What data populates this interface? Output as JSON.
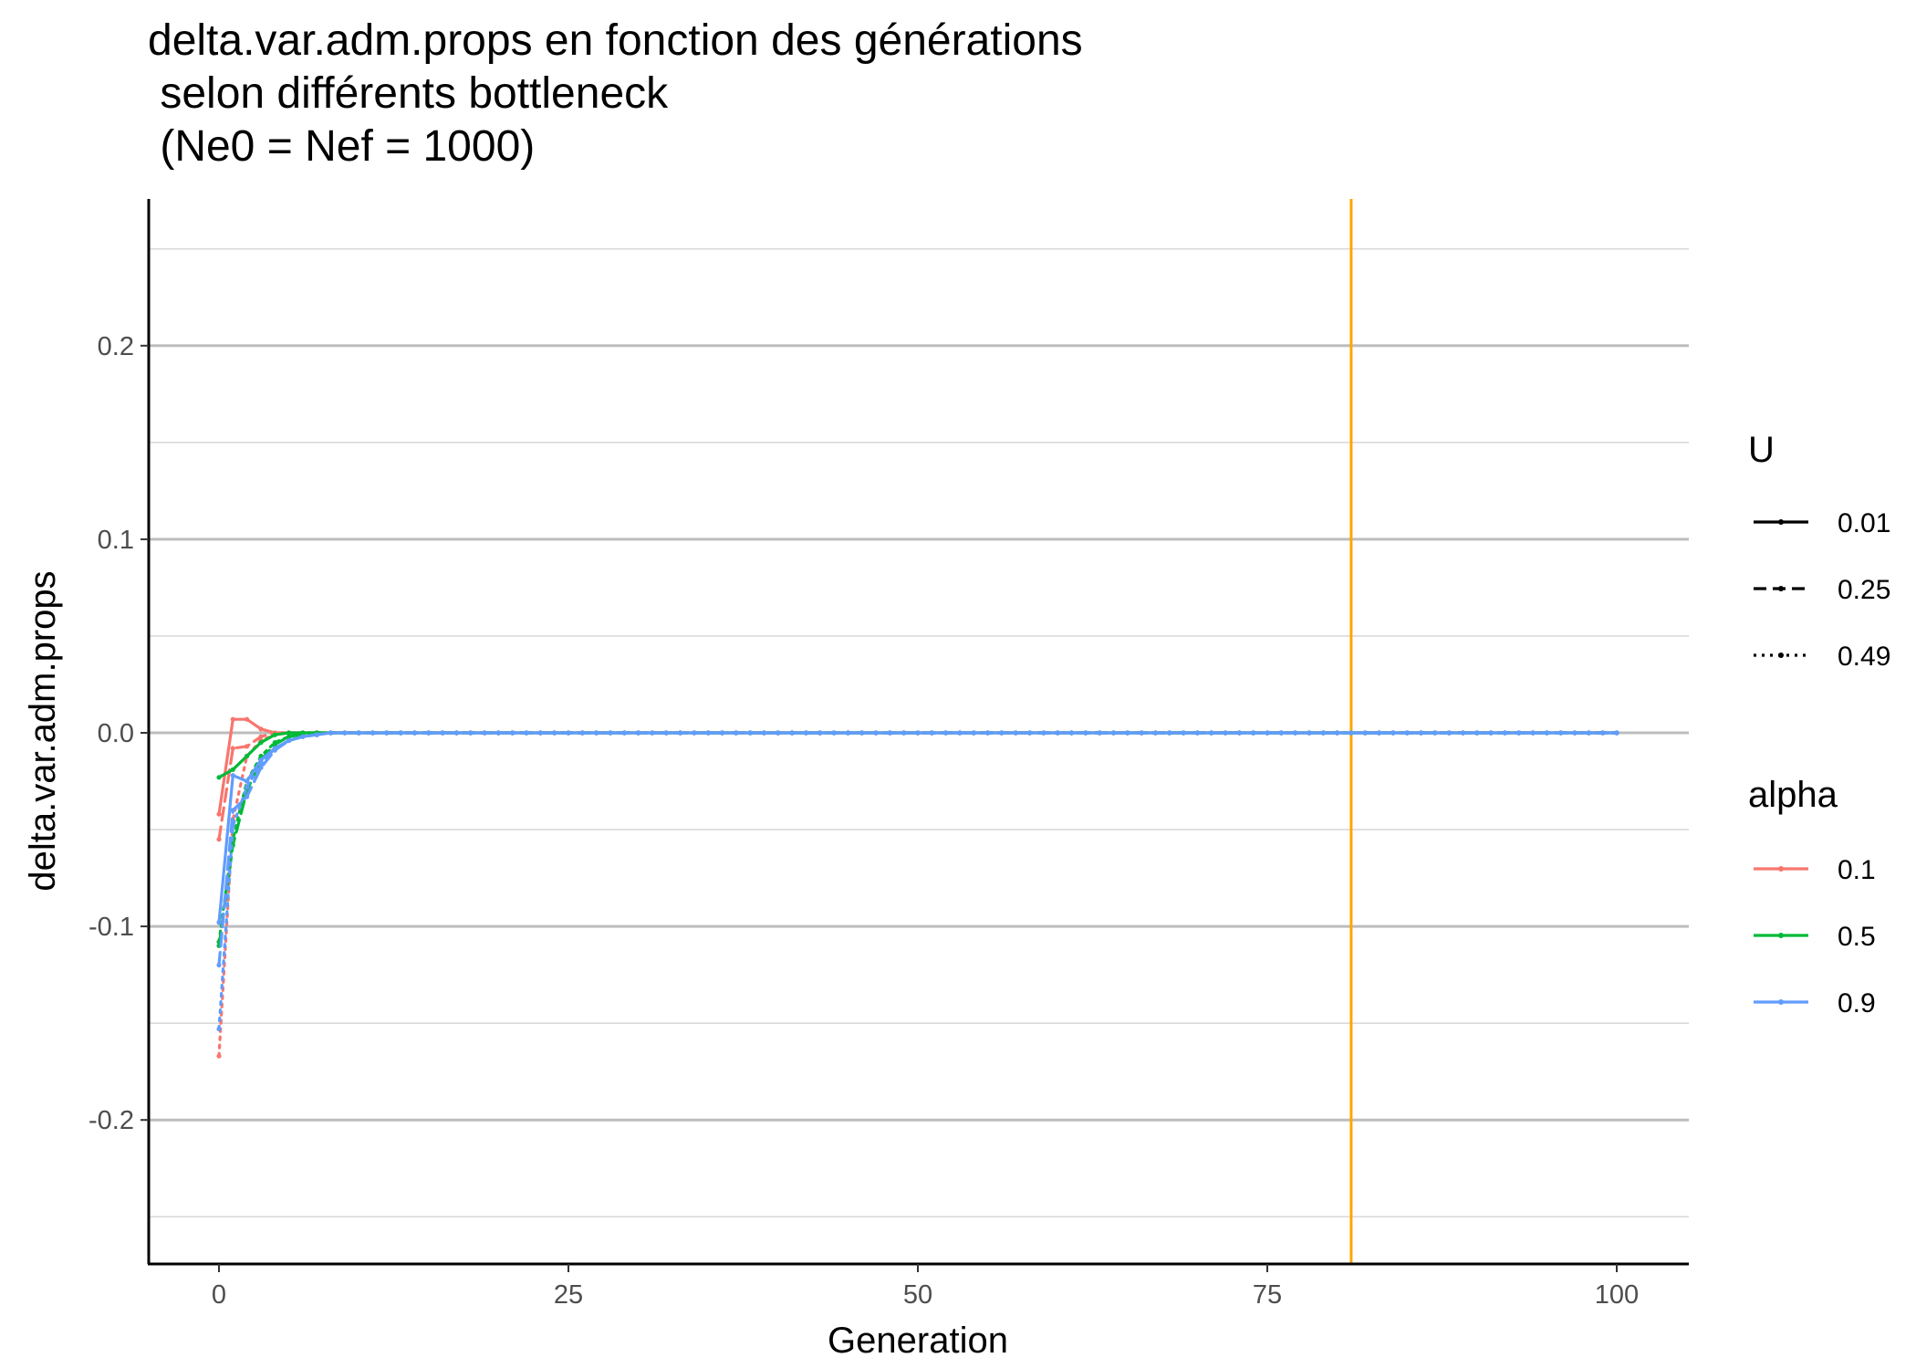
{
  "chart_data": {
    "type": "line",
    "title_lines": [
      "delta.var.adm.props en fonction des générations",
      " selon différents bottleneck",
      " (Ne0 = Nef = 1000)"
    ],
    "xlabel": "Generation",
    "ylabel": "delta.var.adm.props",
    "xlim": [
      -5,
      105
    ],
    "ylim": [
      -0.275,
      0.275
    ],
    "x_ticks": [
      0,
      25,
      50,
      75,
      100
    ],
    "x_tick_labels": [
      "0",
      "25",
      "50",
      "75",
      "100"
    ],
    "y_ticks": [
      -0.2,
      -0.1,
      0.0,
      0.1,
      0.2
    ],
    "y_tick_labels": [
      "-0.2",
      "-0.1",
      "0.0",
      "0.1",
      "0.2"
    ],
    "y_minor_ticks": [
      -0.25,
      -0.15,
      -0.05,
      0.05,
      0.15,
      0.25
    ],
    "grid": "horizontal",
    "vline": {
      "x": 81,
      "color": "#FFA500"
    },
    "legend_position": "right",
    "legends": [
      {
        "title": "U",
        "items": [
          {
            "label": "0.01",
            "linetype": "solid"
          },
          {
            "label": "0.25",
            "linetype": "dashed"
          },
          {
            "label": "0.49",
            "linetype": "dotted"
          }
        ]
      },
      {
        "title": "alpha",
        "items": [
          {
            "label": "0.1",
            "color": "#F8766D"
          },
          {
            "label": "0.5",
            "color": "#00BA38"
          },
          {
            "label": "0.9",
            "color": "#619CFF"
          }
        ]
      }
    ],
    "series": [
      {
        "alpha": "0.1",
        "U": "0.01",
        "color": "#F8766D",
        "linetype": "solid",
        "head": [
          [
            0,
            -0.042
          ],
          [
            1,
            0.007
          ],
          [
            2,
            0.007
          ],
          [
            3,
            0.002
          ],
          [
            4,
            0.0
          ],
          [
            5,
            0.0
          ]
        ]
      },
      {
        "alpha": "0.1",
        "U": "0.25",
        "color": "#F8766D",
        "linetype": "dashed",
        "head": [
          [
            0,
            -0.055
          ],
          [
            1,
            -0.008
          ],
          [
            2,
            -0.007
          ],
          [
            3,
            -0.002
          ],
          [
            4,
            0.0
          ],
          [
            5,
            0.0
          ]
        ]
      },
      {
        "alpha": "0.1",
        "U": "0.49",
        "color": "#F8766D",
        "linetype": "dotted",
        "head": [
          [
            0,
            -0.167
          ],
          [
            1,
            -0.045
          ],
          [
            2,
            -0.012
          ],
          [
            3,
            -0.004
          ],
          [
            4,
            -0.001
          ],
          [
            5,
            0.0
          ]
        ]
      },
      {
        "alpha": "0.5",
        "U": "0.01",
        "color": "#00BA38",
        "linetype": "solid",
        "head": [
          [
            0,
            -0.023
          ],
          [
            1,
            -0.019
          ],
          [
            2,
            -0.012
          ],
          [
            3,
            -0.005
          ],
          [
            4,
            -0.001
          ],
          [
            5,
            0.0
          ]
        ]
      },
      {
        "alpha": "0.5",
        "U": "0.25",
        "color": "#00BA38",
        "linetype": "dashed",
        "head": [
          [
            0,
            -0.11
          ],
          [
            1,
            -0.058
          ],
          [
            2,
            -0.03
          ],
          [
            3,
            -0.014
          ],
          [
            4,
            -0.006
          ],
          [
            5,
            -0.002
          ],
          [
            6,
            -0.001
          ],
          [
            7,
            0.0
          ]
        ]
      },
      {
        "alpha": "0.5",
        "U": "0.49",
        "color": "#00BA38",
        "linetype": "dotted",
        "head": [
          [
            0,
            -0.108
          ],
          [
            1,
            -0.055
          ],
          [
            2,
            -0.025
          ],
          [
            3,
            -0.012
          ],
          [
            4,
            -0.005
          ],
          [
            5,
            -0.002
          ],
          [
            6,
            0.0
          ]
        ]
      },
      {
        "alpha": "0.9",
        "U": "0.01",
        "color": "#619CFF",
        "linetype": "solid",
        "head": [
          [
            0,
            -0.098
          ],
          [
            1,
            -0.022
          ],
          [
            2,
            -0.025
          ],
          [
            3,
            -0.014
          ],
          [
            4,
            -0.008
          ],
          [
            5,
            -0.004
          ],
          [
            6,
            -0.002
          ],
          [
            7,
            -0.001
          ],
          [
            8,
            0.0
          ]
        ]
      },
      {
        "alpha": "0.9",
        "U": "0.25",
        "color": "#619CFF",
        "linetype": "dashed",
        "head": [
          [
            0,
            -0.12
          ],
          [
            1,
            -0.04
          ],
          [
            2,
            -0.033
          ],
          [
            3,
            -0.018
          ],
          [
            4,
            -0.009
          ],
          [
            5,
            -0.004
          ],
          [
            6,
            -0.002
          ],
          [
            7,
            -0.001
          ],
          [
            8,
            0.0
          ]
        ]
      },
      {
        "alpha": "0.9",
        "U": "0.49",
        "color": "#619CFF",
        "linetype": "dotted",
        "head": [
          [
            0,
            -0.153
          ],
          [
            1,
            -0.048
          ],
          [
            2,
            -0.028
          ],
          [
            3,
            -0.016
          ],
          [
            4,
            -0.008
          ],
          [
            5,
            -0.004
          ],
          [
            6,
            -0.002
          ],
          [
            7,
            -0.001
          ],
          [
            8,
            0.0
          ]
        ]
      }
    ],
    "tail": {
      "x_range": [
        0,
        100
      ],
      "value": 0.0
    }
  }
}
